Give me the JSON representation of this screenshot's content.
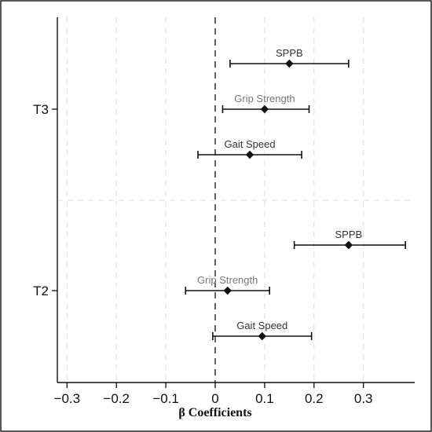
{
  "chart_data": {
    "type": "scatter",
    "subtype": "forest-plot",
    "title": "",
    "xlabel": "β Coefficients",
    "ylabel": "",
    "xlim": [
      -0.33,
      0.41
    ],
    "x_ticks": [
      "−0.3",
      "−0.2",
      "−0.1",
      "0",
      "0.1",
      "0.2",
      "0.3"
    ],
    "x_tick_values": [
      -0.3,
      -0.2,
      -0.1,
      0,
      0.1,
      0.2,
      0.3
    ],
    "reference_line": 0,
    "grid": true,
    "groups": [
      {
        "label": "T3",
        "rows": [
          {
            "label": "SPPB",
            "estimate": 0.15,
            "ci": [
              0.03,
              0.27
            ],
            "label_color": "#333333"
          },
          {
            "label": "Grip Strength",
            "estimate": 0.1,
            "ci": [
              0.015,
              0.19
            ],
            "label_color": "#777777"
          },
          {
            "label": "Gait Speed",
            "estimate": 0.07,
            "ci": [
              -0.035,
              0.175
            ],
            "label_color": "#333333"
          }
        ]
      },
      {
        "label": "T2",
        "rows": [
          {
            "label": "SPPB",
            "estimate": 0.27,
            "ci": [
              0.16,
              0.385
            ],
            "label_color": "#333333"
          },
          {
            "label": "Grip Strength",
            "estimate": 0.025,
            "ci": [
              -0.06,
              0.11
            ],
            "label_color": "#777777"
          },
          {
            "label": "Gait Speed",
            "estimate": 0.095,
            "ci": [
              -0.005,
              0.195
            ],
            "label_color": "#333333"
          }
        ]
      }
    ]
  }
}
